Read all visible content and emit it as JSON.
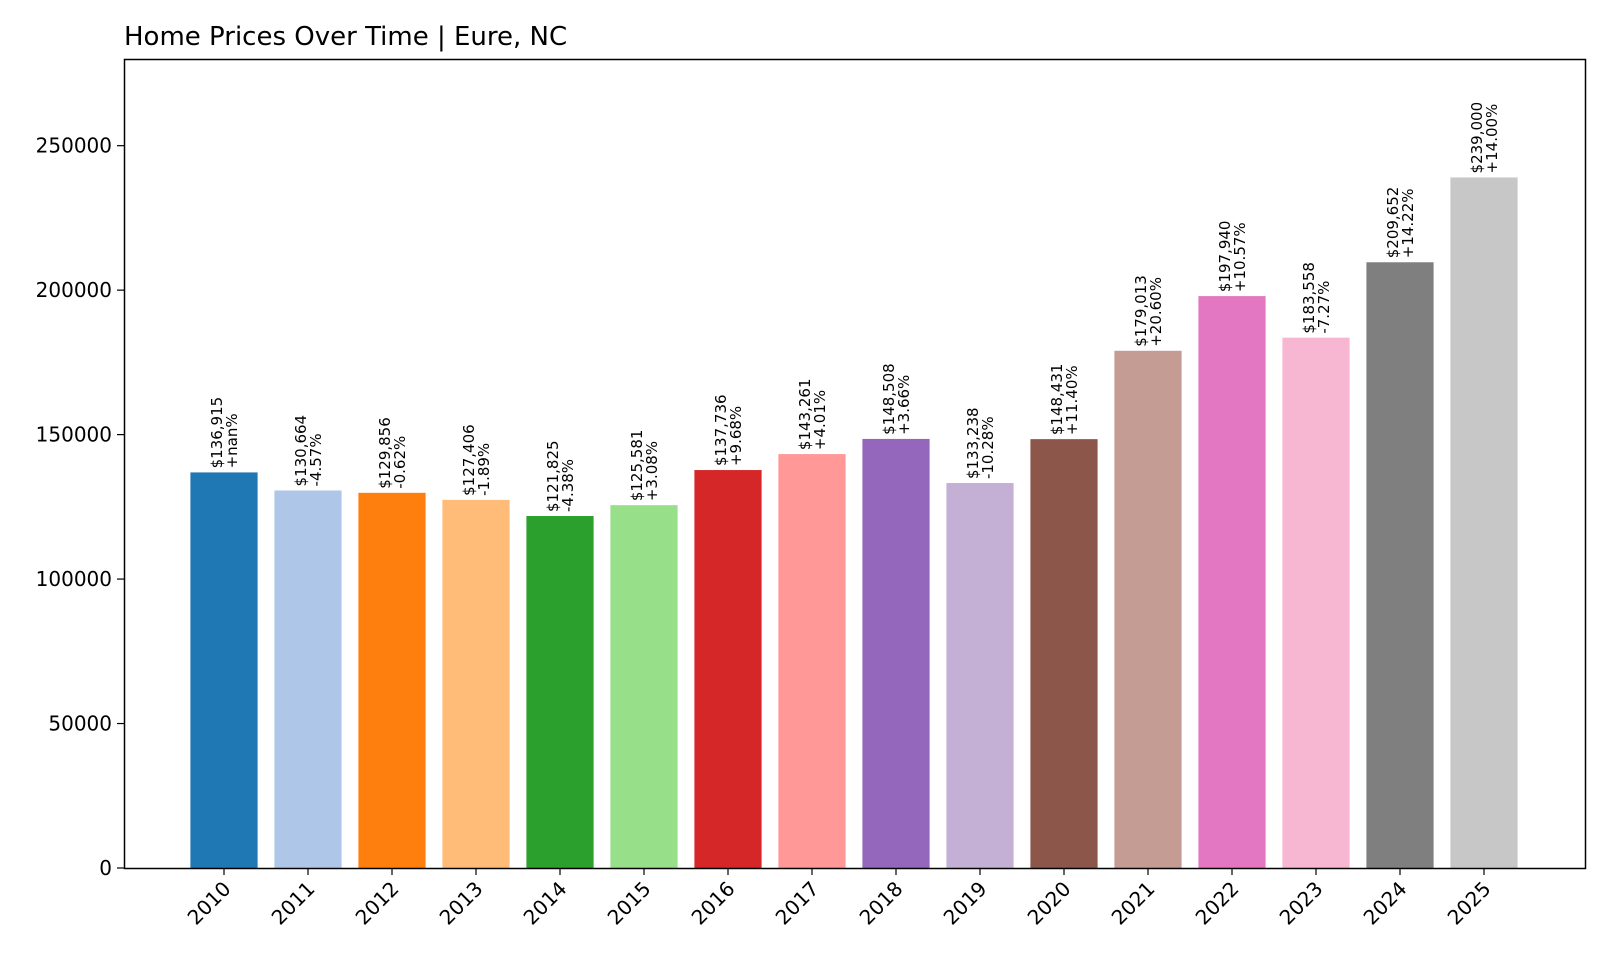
{
  "chart_data": {
    "type": "bar",
    "title": "Home Prices Over Time | Eure, NC",
    "xlabel": "",
    "ylabel": "",
    "ylim": [
      0,
      280000
    ],
    "yticks": [
      0,
      50000,
      100000,
      150000,
      200000,
      250000
    ],
    "ytick_labels": [
      "0",
      "50000",
      "100000",
      "150000",
      "200000",
      "250000"
    ],
    "categories": [
      "2010",
      "2011",
      "2012",
      "2013",
      "2014",
      "2015",
      "2016",
      "2017",
      "2018",
      "2019",
      "2020",
      "2021",
      "2022",
      "2023",
      "2024",
      "2025"
    ],
    "values": [
      136915,
      130664,
      129856,
      127406,
      121825,
      125581,
      137736,
      143261,
      148508,
      133238,
      148431,
      179013,
      197940,
      183558,
      209652,
      239000
    ],
    "value_labels": [
      "$136,915",
      "$130,664",
      "$129,856",
      "$127,406",
      "$121,825",
      "$125,581",
      "$137,736",
      "$143,261",
      "$148,508",
      "$133,238",
      "$148,431",
      "$179,013",
      "$197,940",
      "$183,558",
      "$209,652",
      "$239,000"
    ],
    "change_labels": [
      "+nan%",
      "-4.57%",
      "-0.62%",
      "-1.89%",
      "-4.38%",
      "+3.08%",
      "+9.68%",
      "+4.01%",
      "+3.66%",
      "-10.28%",
      "+11.40%",
      "+20.60%",
      "+10.57%",
      "-7.27%",
      "+14.22%",
      "+14.00%"
    ],
    "colors": [
      "#1f77b4",
      "#aec7e8",
      "#ff7f0e",
      "#ffbb78",
      "#2ca02c",
      "#98df8a",
      "#d62728",
      "#ff9896",
      "#9467bd",
      "#c5b0d5",
      "#8c564b",
      "#c49c94",
      "#e377c2",
      "#f7b6d2",
      "#7f7f7f",
      "#c7c7c7"
    ],
    "grid": false,
    "legend": "none"
  }
}
